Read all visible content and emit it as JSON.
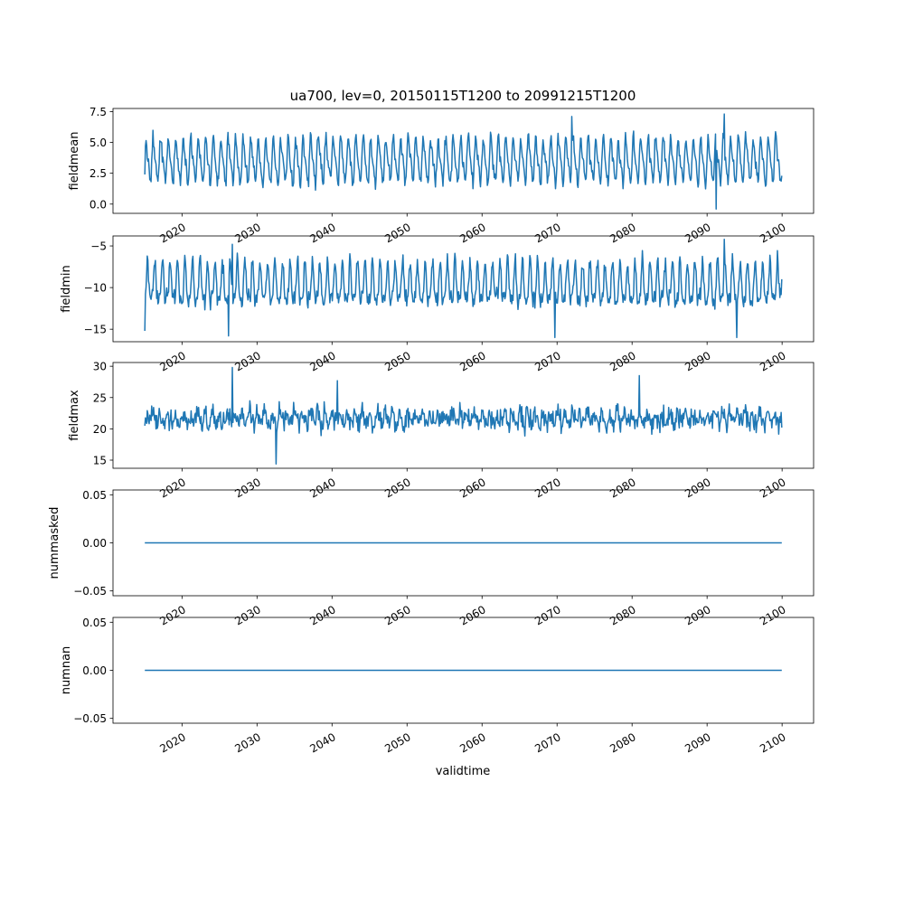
{
  "figure": {
    "title": "ua700, lev=0, 20150115T1200 to 20991215T1200",
    "xlabel": "validtime",
    "line_color": "#1f77b4"
  },
  "chart_data": [
    {
      "type": "line",
      "ylabel": "fieldmean",
      "x_start": 2015.04,
      "x_end": 2099.96,
      "xlim": [
        2010.8,
        2104.2
      ],
      "ylim": [
        -0.75,
        7.75
      ],
      "yticks": [
        0.0,
        2.5,
        5.0,
        7.5
      ],
      "ytick_labels": [
        "0.0",
        "2.5",
        "5.0",
        "7.5"
      ],
      "xticks": [
        2020,
        2030,
        2040,
        2050,
        2060,
        2070,
        2080,
        2090,
        2100
      ],
      "xtick_labels": [
        "2020",
        "2030",
        "2040",
        "2050",
        "2060",
        "2070",
        "2080",
        "2090",
        "2100"
      ],
      "series_mode": "seasonal",
      "baseline": 3.5,
      "amplitude": 1.6,
      "noise": 0.55,
      "ymin_clip": 0.9,
      "ymax_clip": 6.2,
      "special": [
        {
          "x": 2091.2,
          "y": -0.4
        },
        {
          "x": 2092.3,
          "y": 7.3
        },
        {
          "x": 2072.0,
          "y": 7.1
        }
      ],
      "first_y": 2.4,
      "last_y": 2.3
    },
    {
      "type": "line",
      "ylabel": "fieldmin",
      "x_start": 2015.04,
      "x_end": 2099.96,
      "xlim": [
        2010.8,
        2104.2
      ],
      "ylim": [
        -16.5,
        -3.8
      ],
      "yticks": [
        -15,
        -10,
        -5
      ],
      "ytick_labels": [
        "−15",
        "−10",
        "−5"
      ],
      "xticks": [
        2020,
        2030,
        2040,
        2050,
        2060,
        2070,
        2080,
        2090,
        2100
      ],
      "xtick_labels": [
        "2020",
        "2030",
        "2040",
        "2050",
        "2060",
        "2070",
        "2080",
        "2090",
        "2100"
      ],
      "series_mode": "seasonal",
      "baseline": -9.8,
      "amplitude": 2.3,
      "noise": 1.0,
      "ymin_clip": -14.8,
      "ymax_clip": -5.3,
      "special": [
        {
          "x": 2026.2,
          "y": -15.8
        },
        {
          "x": 2069.7,
          "y": -16.0
        },
        {
          "x": 2092.3,
          "y": -4.2
        },
        {
          "x": 2094.0,
          "y": -16.0
        },
        {
          "x": 2026.7,
          "y": -4.8
        }
      ],
      "first_y": -15.2,
      "last_y": -9.0
    },
    {
      "type": "line",
      "ylabel": "fieldmax",
      "x_start": 2015.04,
      "x_end": 2099.96,
      "xlim": [
        2010.8,
        2104.2
      ],
      "ylim": [
        13.7,
        30.6
      ],
      "yticks": [
        15,
        20,
        25,
        30
      ],
      "ytick_labels": [
        "15",
        "20",
        "25",
        "30"
      ],
      "xticks": [
        2020,
        2030,
        2040,
        2050,
        2060,
        2070,
        2080,
        2090,
        2100
      ],
      "xtick_labels": [
        "2020",
        "2030",
        "2040",
        "2050",
        "2060",
        "2070",
        "2080",
        "2090",
        "2100"
      ],
      "series_mode": "noisy",
      "baseline": 21.6,
      "amplitude": 0.8,
      "noise": 1.6,
      "ymin_clip": 17.0,
      "ymax_clip": 26.5,
      "special": [
        {
          "x": 2026.7,
          "y": 29.8
        },
        {
          "x": 2032.5,
          "y": 14.4
        },
        {
          "x": 2081.0,
          "y": 28.5
        },
        {
          "x": 2040.7,
          "y": 27.7
        }
      ],
      "first_y": 20.5,
      "last_y": 20.2
    },
    {
      "type": "line",
      "ylabel": "nummasked",
      "x_start": 2015.04,
      "x_end": 2099.96,
      "xlim": [
        2010.8,
        2104.2
      ],
      "ylim": [
        -0.055,
        0.055
      ],
      "yticks": [
        -0.05,
        0.0,
        0.05
      ],
      "ytick_labels": [
        "−0.05",
        "0.00",
        "0.05"
      ],
      "xticks": [
        2020,
        2030,
        2040,
        2050,
        2060,
        2070,
        2080,
        2090,
        2100
      ],
      "xtick_labels": [
        "2020",
        "2030",
        "2040",
        "2050",
        "2060",
        "2070",
        "2080",
        "2090",
        "2100"
      ],
      "series_mode": "constant",
      "constant": 0.0
    },
    {
      "type": "line",
      "ylabel": "numnan",
      "x_start": 2015.04,
      "x_end": 2099.96,
      "xlim": [
        2010.8,
        2104.2
      ],
      "ylim": [
        -0.055,
        0.055
      ],
      "yticks": [
        -0.05,
        0.0,
        0.05
      ],
      "ytick_labels": [
        "−0.05",
        "0.00",
        "0.05"
      ],
      "xticks": [
        2020,
        2030,
        2040,
        2050,
        2060,
        2070,
        2080,
        2090,
        2100
      ],
      "xtick_labels": [
        "2020",
        "2030",
        "2040",
        "2050",
        "2060",
        "2070",
        "2080",
        "2090",
        "2100"
      ],
      "series_mode": "constant",
      "constant": 0.0
    }
  ]
}
